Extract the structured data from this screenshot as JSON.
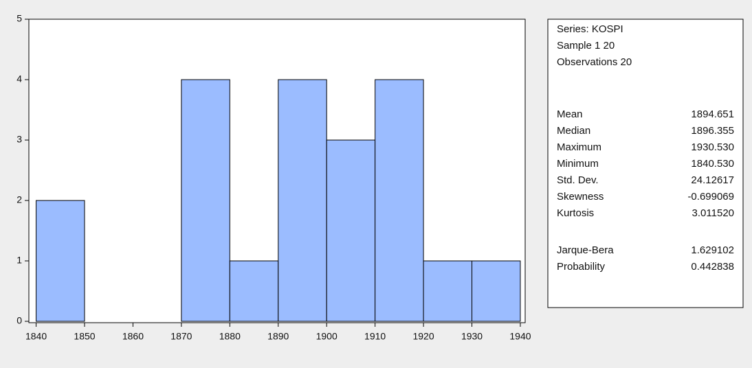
{
  "chart_data": {
    "type": "histogram",
    "bins": [
      1840,
      1850,
      1860,
      1870,
      1880,
      1890,
      1900,
      1910,
      1920,
      1930,
      1940
    ],
    "values": [
      2,
      0,
      0,
      4,
      1,
      4,
      3,
      4,
      1,
      1
    ],
    "color": "#9bbcff",
    "xlim": [
      1838.5,
      1941
    ],
    "xticks": [
      1840,
      1850,
      1860,
      1870,
      1880,
      1890,
      1900,
      1910,
      1920,
      1930,
      1940
    ],
    "ylim": [
      0,
      5
    ],
    "yticks": [
      0,
      1,
      2,
      3,
      4,
      5
    ],
    "stats": {
      "header": [
        "Series: KOSPI",
        "Sample 1 20",
        "Observations 20"
      ],
      "groups": [
        [
          [
            "Mean",
            "1894.651"
          ],
          [
            "Median",
            "1896.355"
          ],
          [
            "Maximum",
            "1930.530"
          ],
          [
            "Minimum",
            "1840.530"
          ],
          [
            "Std. Dev.",
            "24.12617"
          ],
          [
            "Skewness",
            "-0.699069"
          ],
          [
            "Kurtosis",
            "3.011520"
          ]
        ],
        [
          [
            "Jarque-Bera",
            "1.629102"
          ],
          [
            "Probability",
            "0.442838"
          ]
        ]
      ]
    }
  }
}
